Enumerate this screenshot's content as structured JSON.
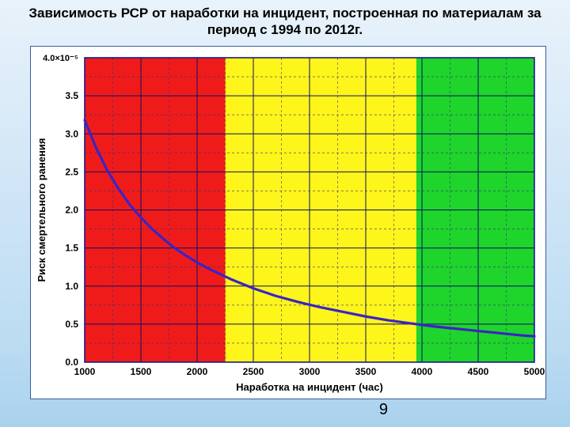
{
  "slide": {
    "title": "Зависимость РСР от наработки на инцидент, построенная по материалам за период с 1994 по 2012г.",
    "title_fontsize": 17,
    "page_number": "9",
    "background_gradient": [
      "#e8f2fb",
      "#a9d2ee"
    ]
  },
  "chart": {
    "type": "line",
    "panel_bg": "#ffffff",
    "plot_border": "#1a1a8a",
    "xlabel": "Наработка на инцидент (час)",
    "ylabel": "Риск смертельного ранения",
    "y_exponent_label": "4.0×10⁻⁵",
    "label_fontsize": 13,
    "tick_fontsize": 12,
    "xlim": [
      1000,
      5000
    ],
    "ylim": [
      0,
      4.0
    ],
    "xtick_step": 500,
    "ytick_step": 0.5,
    "xticks": [
      1000,
      1500,
      2000,
      2500,
      3000,
      3500,
      4000,
      4500,
      5000
    ],
    "yticks": [
      0.0,
      0.5,
      1.0,
      1.5,
      2.0,
      2.5,
      3.0,
      3.5,
      4.0
    ],
    "grid_major_color": "#0f0f66",
    "grid_major_width": 1,
    "grid_minor_dash": "3 3",
    "grid_minor_color": "#333377",
    "zones": [
      {
        "x_from": 1000,
        "x_to": 2250,
        "color": "#ef1b1b"
      },
      {
        "x_from": 2250,
        "x_to": 3950,
        "color": "#fef51a"
      },
      {
        "x_from": 3950,
        "x_to": 5000,
        "color": "#1fd42b"
      }
    ],
    "series": [
      {
        "name": "rcp",
        "color": "#3a24c4",
        "width": 3.2,
        "data": [
          {
            "x": 1000,
            "y": 3.18
          },
          {
            "x": 1100,
            "y": 2.82
          },
          {
            "x": 1200,
            "y": 2.52
          },
          {
            "x": 1300,
            "y": 2.28
          },
          {
            "x": 1400,
            "y": 2.07
          },
          {
            "x": 1500,
            "y": 1.9
          },
          {
            "x": 1600,
            "y": 1.75
          },
          {
            "x": 1700,
            "y": 1.62
          },
          {
            "x": 1800,
            "y": 1.5
          },
          {
            "x": 1900,
            "y": 1.4
          },
          {
            "x": 2000,
            "y": 1.31
          },
          {
            "x": 2100,
            "y": 1.23
          },
          {
            "x": 2200,
            "y": 1.16
          },
          {
            "x": 2300,
            "y": 1.09
          },
          {
            "x": 2400,
            "y": 1.03
          },
          {
            "x": 2500,
            "y": 0.97
          },
          {
            "x": 2700,
            "y": 0.87
          },
          {
            "x": 2900,
            "y": 0.79
          },
          {
            "x": 3100,
            "y": 0.72
          },
          {
            "x": 3300,
            "y": 0.66
          },
          {
            "x": 3500,
            "y": 0.6
          },
          {
            "x": 3700,
            "y": 0.55
          },
          {
            "x": 3900,
            "y": 0.51
          },
          {
            "x": 4100,
            "y": 0.47
          },
          {
            "x": 4300,
            "y": 0.44
          },
          {
            "x": 4500,
            "y": 0.41
          },
          {
            "x": 4700,
            "y": 0.38
          },
          {
            "x": 4900,
            "y": 0.35
          },
          {
            "x": 5000,
            "y": 0.34
          }
        ]
      }
    ]
  }
}
